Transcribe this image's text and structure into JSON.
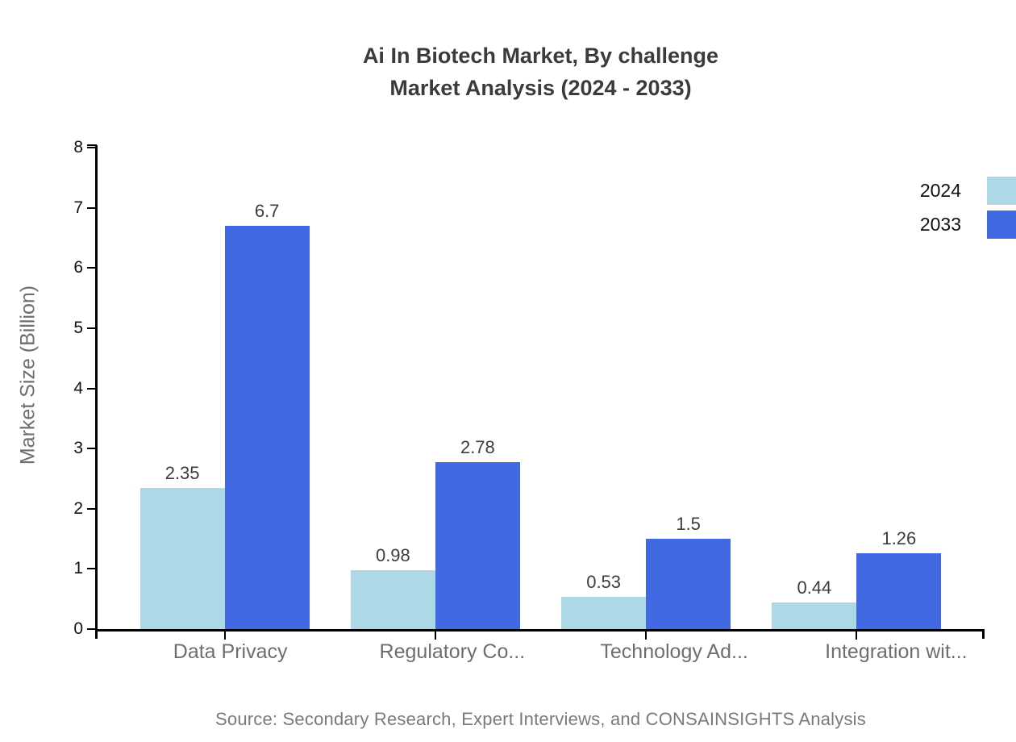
{
  "chart_data": {
    "type": "bar",
    "title": "Ai In Biotech Market, By challenge",
    "subtitle": "Market Analysis (2024 - 2033)",
    "ylabel": "Market Size (Billion)",
    "xlabel": "",
    "ylim": [
      0,
      8
    ],
    "ytick_step": 1,
    "grid": false,
    "legend_position": "top-right",
    "categories": [
      "Data Privacy",
      "Regulatory Co...",
      "Technology Ad...",
      "Integration wit..."
    ],
    "series": [
      {
        "name": "2024",
        "color": "#ADD8E6",
        "values": [
          2.35,
          0.98,
          0.53,
          0.44
        ]
      },
      {
        "name": "2033",
        "color": "#4169E1",
        "values": [
          6.7,
          2.78,
          1.5,
          1.26
        ]
      }
    ],
    "source": "Source: Secondary Research, Expert Interviews, and CONSAINSIGHTS Analysis",
    "colors": {
      "axis": "#000000",
      "title": "#3b3b3b",
      "tick_label": "#111111",
      "category_label": "#6e6e6e",
      "value_label": "#3d3d3d",
      "source": "#7a7a7a",
      "background": "#ffffff"
    }
  }
}
